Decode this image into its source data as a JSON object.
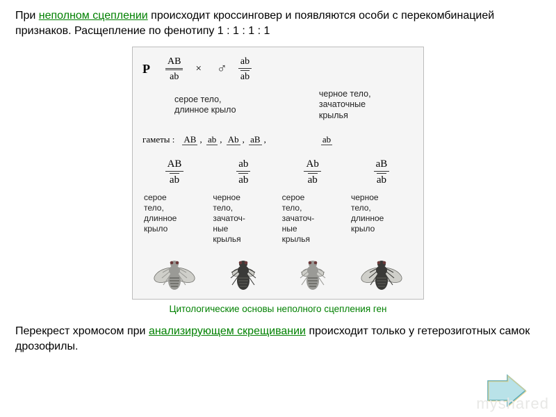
{
  "intro": {
    "pre": "При ",
    "highlight": "неполном сцеплении",
    "post": " происходит кроссинговер и появляются особи с перекомбинацией признаков. Расщепление по фенотипу 1 : 1 : 1 : 1"
  },
  "figure": {
    "p_label": "P",
    "cross_symbol": "×",
    "male_symbol": "♂",
    "parents": {
      "female": {
        "top": "AB",
        "bottom": "ab",
        "phenotype": "серое тело,\nдлинное крыло",
        "has_double_line": true
      },
      "male": {
        "top": "ab",
        "bottom": "ab",
        "phenotype": "черное тело,\nзачаточные\nкрылья",
        "has_double_line": false
      }
    },
    "gametes_label": "гаметы :",
    "gametes_female": [
      "AB",
      "ab",
      "Ab",
      "aB"
    ],
    "gametes_male": [
      "ab"
    ],
    "offspring": [
      {
        "top": "AB",
        "bottom": "ab",
        "phenotype": "серое\nтело,\nдлинное\nкрыло",
        "fly": "gray_long"
      },
      {
        "top": "ab",
        "bottom": "ab",
        "phenotype": "черное\nтело,\nзачаточ-\nные\nкрылья",
        "fly": "black_short"
      },
      {
        "top": "Ab",
        "bottom": "ab",
        "phenotype": "серое\nтело,\nзачаточ-\nные\nкрылья",
        "fly": "gray_short"
      },
      {
        "top": "aB",
        "bottom": "ab",
        "phenotype": "черное\nтело,\nдлинное\nкрыло",
        "fly": "black_long"
      }
    ],
    "fly_style": {
      "gray_body": "#9a9a96",
      "black_body": "#3a3a38",
      "wing_fill": "#cfcfca",
      "wing_stroke": "#6b6b66",
      "stripe": "#5a5a55"
    }
  },
  "caption": "Цитологические основы неполного сцепления ген",
  "conclusion": {
    "pre": "Перекрест хромосом при ",
    "highlight": "анализирующем скрещивании",
    "post": " происходит только у гетерозиготных самок дрозофилы."
  },
  "nav_arrow": {
    "fill": "#b9e2e8",
    "stroke1": "#5aa9b5",
    "stroke2": "#e8d48a"
  },
  "watermark": "myshared",
  "colors": {
    "highlight": "#008000",
    "figure_bg": "#f5f5f5",
    "figure_border": "#bcbcbc",
    "text": "#000000"
  }
}
